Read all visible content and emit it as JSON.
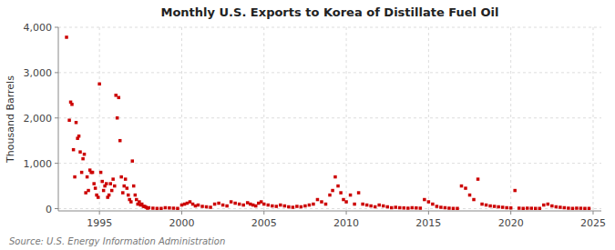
{
  "chart_data": {
    "type": "scatter",
    "title": "Monthly U.S. Exports to Korea of Distillate Fuel Oil",
    "ylabel": "Thousand Barrels",
    "source": "Source: U.S. Energy Information Administration",
    "color": "#cc0000",
    "marker": "square",
    "grid": true,
    "xlim": [
      1992.5,
      2025.5
    ],
    "ylim": [
      -50,
      4000
    ],
    "xticks": [
      1995,
      2000,
      2005,
      2010,
      2015,
      2020,
      2025
    ],
    "yticks": [
      0,
      {
        "value": 1000,
        "label": "1,000"
      },
      {
        "value": 2000,
        "label": "2,000"
      },
      {
        "value": 3000,
        "label": "3,000"
      },
      {
        "value": 4000,
        "label": "4,000"
      }
    ],
    "x": [
      1993.0,
      1993.17,
      1993.25,
      1993.33,
      1993.42,
      1993.5,
      1993.58,
      1993.67,
      1993.75,
      1993.83,
      1993.92,
      1994.0,
      1994.08,
      1994.17,
      1994.25,
      1994.33,
      1994.42,
      1994.5,
      1994.58,
      1994.67,
      1994.75,
      1994.83,
      1994.92,
      1995.0,
      1995.08,
      1995.17,
      1995.25,
      1995.33,
      1995.42,
      1995.5,
      1995.58,
      1995.67,
      1995.75,
      1995.83,
      1995.92,
      1996.0,
      1996.08,
      1996.17,
      1996.25,
      1996.33,
      1996.42,
      1996.5,
      1996.58,
      1996.67,
      1996.75,
      1996.83,
      1996.92,
      1997.0,
      1997.08,
      1997.17,
      1997.25,
      1997.33,
      1997.42,
      1997.5,
      1997.58,
      1997.67,
      1997.75,
      1997.83,
      1997.92,
      1998.0,
      1998.25,
      1998.5,
      1998.75,
      1999.0,
      1999.25,
      1999.5,
      1999.75,
      2000.0,
      2000.17,
      2000.33,
      2000.5,
      2000.67,
      2000.83,
      2001.0,
      2001.25,
      2001.5,
      2001.75,
      2002.0,
      2002.25,
      2002.5,
      2002.75,
      2003.0,
      2003.25,
      2003.5,
      2003.75,
      2004.0,
      2004.17,
      2004.33,
      2004.5,
      2004.67,
      2004.83,
      2005.0,
      2005.25,
      2005.5,
      2005.75,
      2006.0,
      2006.25,
      2006.5,
      2006.75,
      2007.0,
      2007.25,
      2007.5,
      2007.75,
      2008.0,
      2008.25,
      2008.5,
      2008.75,
      2009.0,
      2009.17,
      2009.33,
      2009.5,
      2009.67,
      2009.83,
      2010.0,
      2010.25,
      2010.5,
      2010.75,
      2011.0,
      2011.25,
      2011.5,
      2011.75,
      2012.0,
      2012.25,
      2012.5,
      2012.75,
      2013.0,
      2013.25,
      2013.5,
      2013.75,
      2014.0,
      2014.25,
      2014.5,
      2014.75,
      2015.0,
      2015.25,
      2015.5,
      2015.75,
      2016.0,
      2016.25,
      2016.5,
      2016.75,
      2017.0,
      2017.25,
      2017.5,
      2017.75,
      2018.0,
      2018.25,
      2018.5,
      2018.75,
      2019.0,
      2019.25,
      2019.5,
      2019.75,
      2020.0,
      2020.25,
      2020.5,
      2020.75,
      2021.0,
      2021.25,
      2021.5,
      2021.75,
      2022.0,
      2022.25,
      2022.5,
      2022.75,
      2023.0,
      2023.25,
      2023.5,
      2023.75,
      2024.0,
      2024.25,
      2024.5,
      2024.75
    ],
    "values": [
      3780,
      1950,
      2350,
      2300,
      1300,
      700,
      1900,
      1550,
      1600,
      1250,
      800,
      1100,
      1200,
      350,
      700,
      400,
      850,
      800,
      800,
      550,
      450,
      300,
      250,
      2750,
      800,
      600,
      400,
      500,
      550,
      250,
      300,
      550,
      400,
      650,
      500,
      2500,
      2000,
      2450,
      1500,
      700,
      350,
      500,
      650,
      450,
      300,
      200,
      150,
      1050,
      500,
      300,
      200,
      100,
      150,
      80,
      100,
      50,
      50,
      30,
      10,
      20,
      10,
      5,
      5,
      20,
      15,
      10,
      5,
      80,
      100,
      120,
      150,
      100,
      60,
      80,
      50,
      40,
      30,
      100,
      120,
      80,
      60,
      150,
      120,
      100,
      80,
      130,
      100,
      80,
      60,
      120,
      150,
      100,
      80,
      60,
      50,
      80,
      60,
      40,
      30,
      50,
      40,
      60,
      80,
      100,
      200,
      150,
      100,
      300,
      400,
      700,
      500,
      350,
      200,
      150,
      300,
      100,
      350,
      100,
      80,
      60,
      40,
      80,
      60,
      40,
      20,
      30,
      20,
      15,
      10,
      20,
      15,
      10,
      200,
      150,
      100,
      50,
      30,
      20,
      10,
      5,
      5,
      500,
      450,
      300,
      200,
      650,
      100,
      80,
      60,
      50,
      40,
      30,
      20,
      15,
      400,
      10,
      5,
      10,
      8,
      5,
      5,
      80,
      100,
      60,
      40,
      30,
      20,
      10,
      5,
      10,
      8,
      5,
      5
    ]
  }
}
